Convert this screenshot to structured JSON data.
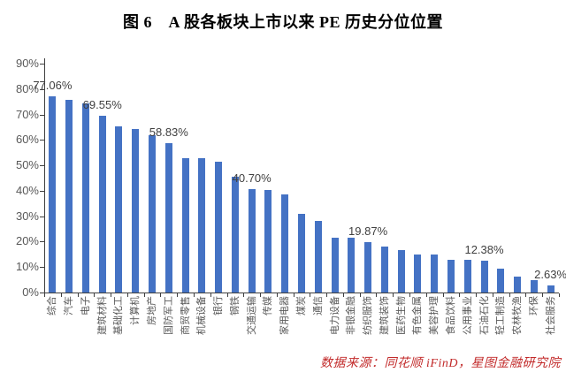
{
  "title": "图 6　A 股各板块上市以来 PE 历史分位位置",
  "source_note": "数据来源：同花顺 iFinD，星图金融研究院",
  "colors": {
    "bar": "#4472C4",
    "axis": "#3f3f3f",
    "tick_label": "#595959",
    "data_label": "#404040",
    "source_note": "#C22A2A",
    "title": "#000000",
    "background": "#FFFFFF"
  },
  "chart_data": {
    "type": "bar",
    "title": "图 6　A 股各板块上市以来 PE 历史分位位置",
    "xlabel": "",
    "ylabel": "",
    "ylim": [
      0,
      90
    ],
    "ytick_step": 10,
    "ytick_labels": [
      "0%",
      "10%",
      "20%",
      "30%",
      "40%",
      "50%",
      "60%",
      "70%",
      "80%",
      "90%"
    ],
    "grid": false,
    "legend": false,
    "categories": [
      "综合",
      "汽车",
      "电子",
      "建筑材料",
      "基础化工",
      "计算机",
      "房地产",
      "国防军工",
      "商贸零售",
      "机械设备",
      "银行",
      "钢铁",
      "交通运输",
      "传媒",
      "家用电器",
      "煤炭",
      "通信",
      "电力设备",
      "非银金融",
      "纺织服饰",
      "建筑装饰",
      "医药生物",
      "有色金属",
      "美容护理",
      "食品饮料",
      "公用事业",
      "石油石化",
      "轻工制造",
      "农林牧渔",
      "环保",
      "社会服务"
    ],
    "values": [
      77.06,
      75.9,
      74.4,
      69.55,
      65.4,
      64.3,
      62.0,
      58.83,
      52.9,
      52.7,
      51.5,
      45.5,
      40.7,
      40.3,
      38.7,
      30.9,
      28.1,
      21.6,
      21.4,
      19.87,
      17.9,
      16.6,
      15.0,
      14.8,
      13.0,
      12.7,
      12.38,
      9.3,
      6.4,
      4.9,
      2.63
    ],
    "data_labels": [
      {
        "index": 0,
        "text": "77.06%"
      },
      {
        "index": 3,
        "text": "69.55%"
      },
      {
        "index": 7,
        "text": "58.83%"
      },
      {
        "index": 12,
        "text": "40.70%"
      },
      {
        "index": 19,
        "text": "19.87%"
      },
      {
        "index": 26,
        "text": "12.38%"
      },
      {
        "index": 30,
        "text": "2.63%"
      }
    ]
  }
}
